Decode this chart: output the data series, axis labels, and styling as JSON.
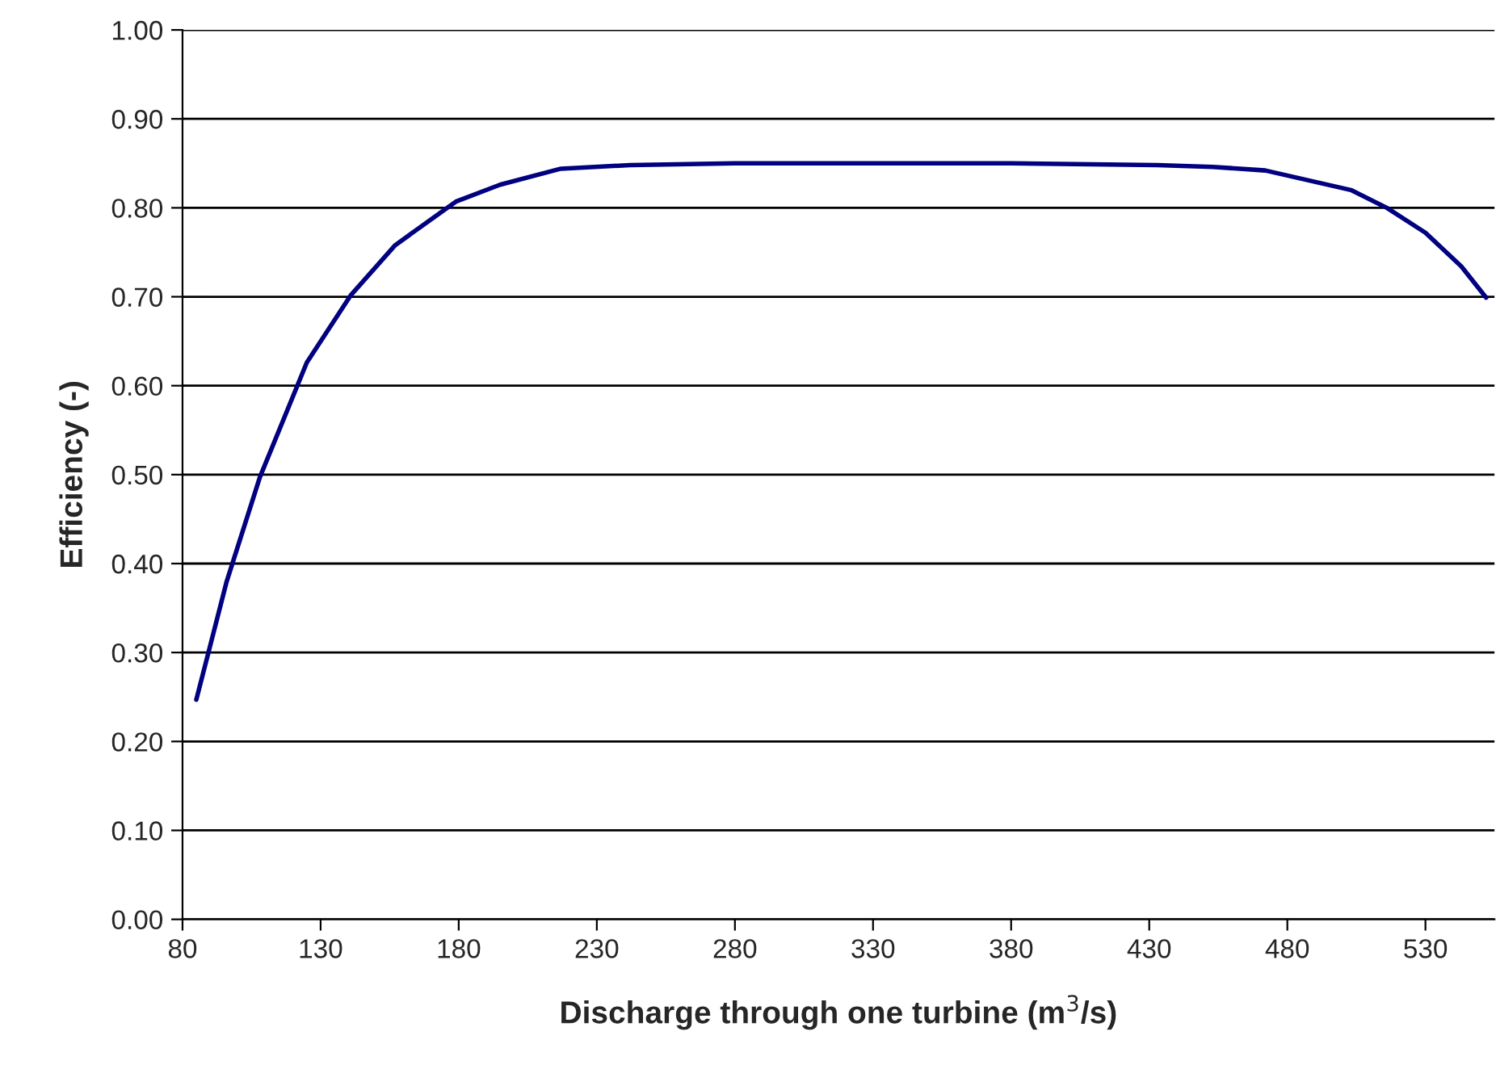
{
  "chart_data": {
    "type": "line",
    "xlabel": "Discharge through one turbine (m$^{3}$/s)",
    "ylabel": "Efficiency (-)",
    "xlim": [
      80,
      555
    ],
    "xticks": [
      80,
      130,
      180,
      230,
      280,
      330,
      380,
      430,
      480,
      530
    ],
    "ylim": [
      0,
      1
    ],
    "yticks": [
      {
        "value": 0,
        "label": "0.00"
      },
      {
        "value": 0.1,
        "label": "0.10"
      },
      {
        "value": 0.2,
        "label": "0.20"
      },
      {
        "value": 0.3,
        "label": "0.30"
      },
      {
        "value": 0.4,
        "label": "0.40"
      },
      {
        "value": 0.5,
        "label": "0.50"
      },
      {
        "value": 0.6,
        "label": "0.60"
      },
      {
        "value": 0.7,
        "label": "0.70"
      },
      {
        "value": 0.8,
        "label": "0.80"
      },
      {
        "value": 0.9,
        "label": "0.90"
      },
      {
        "value": 1,
        "label": "1.00"
      }
    ],
    "grid": "y",
    "legend": false,
    "series": [
      {
        "color": "#000080",
        "x": [
          85,
          96,
          108,
          125,
          141,
          157,
          179,
          195,
          217,
          242,
          280,
          330,
          380,
          433,
          453,
          472,
          503,
          516,
          530,
          543,
          552
        ],
        "values": [
          0.247,
          0.38,
          0.497,
          0.626,
          0.702,
          0.758,
          0.807,
          0.826,
          0.844,
          0.848,
          0.85,
          0.85,
          0.85,
          0.848,
          0.846,
          0.842,
          0.82,
          0.8,
          0.772,
          0.734,
          0.699
        ]
      }
    ]
  }
}
